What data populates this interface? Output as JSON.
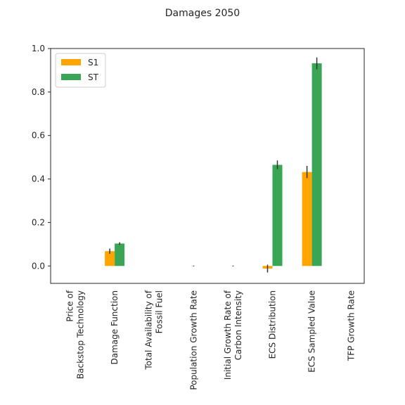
{
  "chart_data": {
    "type": "bar",
    "title": "Damages 2050",
    "xlabel": "",
    "ylabel": "",
    "ylim": [
      -0.08,
      1.0
    ],
    "yticks": [
      0.0,
      0.2,
      0.4,
      0.6,
      0.8,
      1.0
    ],
    "ytick_labels": [
      "0.0",
      "0.2",
      "0.4",
      "0.6",
      "0.8",
      "1.0"
    ],
    "categories": [
      "Price of\nBackstop Technology",
      "Damage Function",
      "Total Availability of\nFossil Fuel",
      "Population Growth Rate",
      "Initial Growth Rate of\nCarbon Intensity",
      "ECS Distribution",
      "ECS Sampled Value",
      "TFP Growth Rate"
    ],
    "series": [
      {
        "name": "S1",
        "color": "#ffa500",
        "values": [
          0.0,
          0.068,
          0.0,
          0.0,
          0.0,
          -0.012,
          0.432,
          0.0
        ],
        "errors": [
          0.0,
          0.012,
          0.0,
          0.0,
          0.0,
          0.018,
          0.028,
          0.0
        ]
      },
      {
        "name": "ST",
        "color": "#3aa655",
        "values": [
          0.0,
          0.103,
          0.0,
          0.0,
          0.0,
          0.465,
          0.932,
          0.0
        ],
        "errors": [
          0.0,
          0.006,
          0.0,
          0.0,
          0.0,
          0.02,
          0.027,
          0.0
        ]
      }
    ],
    "legend_position": "top-left",
    "grid": false
  }
}
